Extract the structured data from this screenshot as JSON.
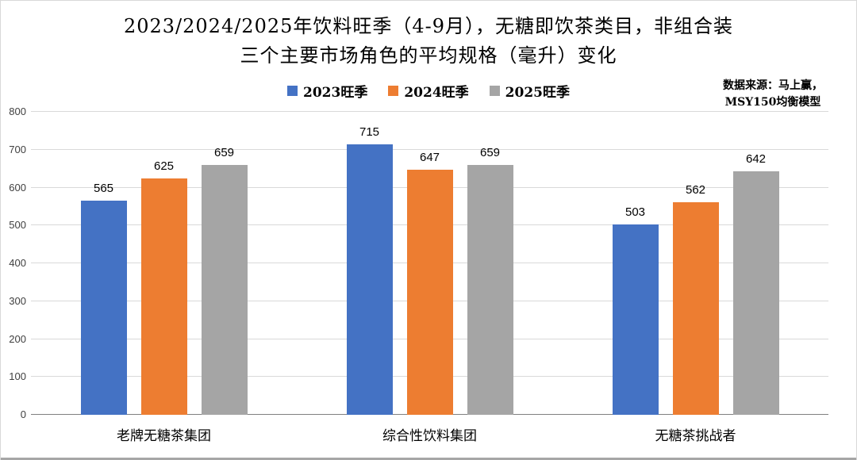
{
  "title": {
    "line1": "2023/2024/2025年饮料旺季（4-9月），无糖即饮茶类目，非组合装",
    "line2": "三个主要市场角色的平均规格（毫升）变化"
  },
  "source": {
    "line1": "数据来源：马上赢，",
    "line2": "MSY150均衡模型"
  },
  "chart_data": {
    "type": "bar",
    "title": "2023/2024/2025年饮料旺季（4-9月），无糖即饮茶类目，非组合装 三个主要市场角色的平均规格（毫升）变化",
    "categories": [
      "老牌无糖茶集团",
      "综合性饮料集团",
      "无糖茶挑战者"
    ],
    "series": [
      {
        "name": "2023旺季",
        "color": "#4472C4",
        "values": [
          565,
          715,
          503
        ]
      },
      {
        "name": "2024旺季",
        "color": "#ED7D31",
        "values": [
          625,
          647,
          562
        ]
      },
      {
        "name": "2025旺季",
        "color": "#A5A5A5",
        "values": [
          659,
          659,
          642
        ]
      }
    ],
    "ylim": [
      0,
      800
    ],
    "ytick_step": 100,
    "grid": true,
    "legend_position": "top",
    "xlabel": "",
    "ylabel": ""
  }
}
